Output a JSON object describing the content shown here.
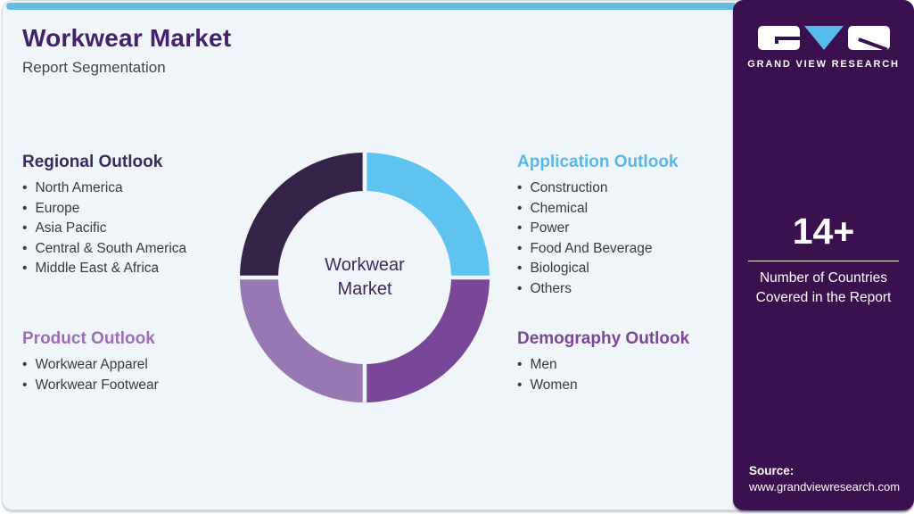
{
  "header": {
    "title": "Workwear Market",
    "subtitle": "Report Segmentation",
    "title_color": "#44216a",
    "top_bar_color": "#68bbe3"
  },
  "sections": [
    {
      "id": "regional",
      "heading": "Regional Outlook",
      "heading_color": "#3d2a5d",
      "items": [
        "North America",
        "Europe",
        "Asia Pacific",
        "Central & South America",
        "Middle East & Africa"
      ]
    },
    {
      "id": "product",
      "heading": "Product Outlook",
      "heading_color": "#9c6fb5",
      "items": [
        "Workwear Apparel",
        "Workwear Footwear"
      ]
    },
    {
      "id": "application",
      "heading": "Application Outlook",
      "heading_color": "#56b9e9",
      "items": [
        "Construction",
        "Chemical",
        "Power",
        "Food And Beverage",
        "Biological",
        "Others"
      ]
    },
    {
      "id": "demography",
      "heading": "Demography Outlook",
      "heading_color": "#7d4699",
      "items": [
        "Men",
        "Women"
      ]
    }
  ],
  "chart_data": {
    "type": "pie",
    "subtype": "donut",
    "title": "Workwear Market Report Segmentation",
    "center_label_lines": [
      "Workwear",
      "Market"
    ],
    "segments": [
      {
        "name": "Application Outlook",
        "value": 25,
        "color": "#5ec3ee"
      },
      {
        "name": "Demography Outlook",
        "value": 25,
        "color": "#7a4697"
      },
      {
        "name": "Product Outlook",
        "value": 25,
        "color": "#9878b3"
      },
      {
        "name": "Regional Outlook",
        "value": 25,
        "color": "#35234a"
      }
    ],
    "start_angle_deg": 0,
    "outer_radius": 140,
    "inner_radius": 97,
    "gap_color": "#f0f5f9",
    "legend_position": "none"
  },
  "side_panel": {
    "bg_color": "#3a114e",
    "brand": {
      "logo_text": "GRAND VIEW RESEARCH",
      "logo_icon": "gvr-logo"
    },
    "stat_value": "14+",
    "stat_label_line1": "Number of Countries",
    "stat_label_line2": "Covered in the Report",
    "source_label": "Source:",
    "source_url": "www.grandviewresearch.com"
  }
}
